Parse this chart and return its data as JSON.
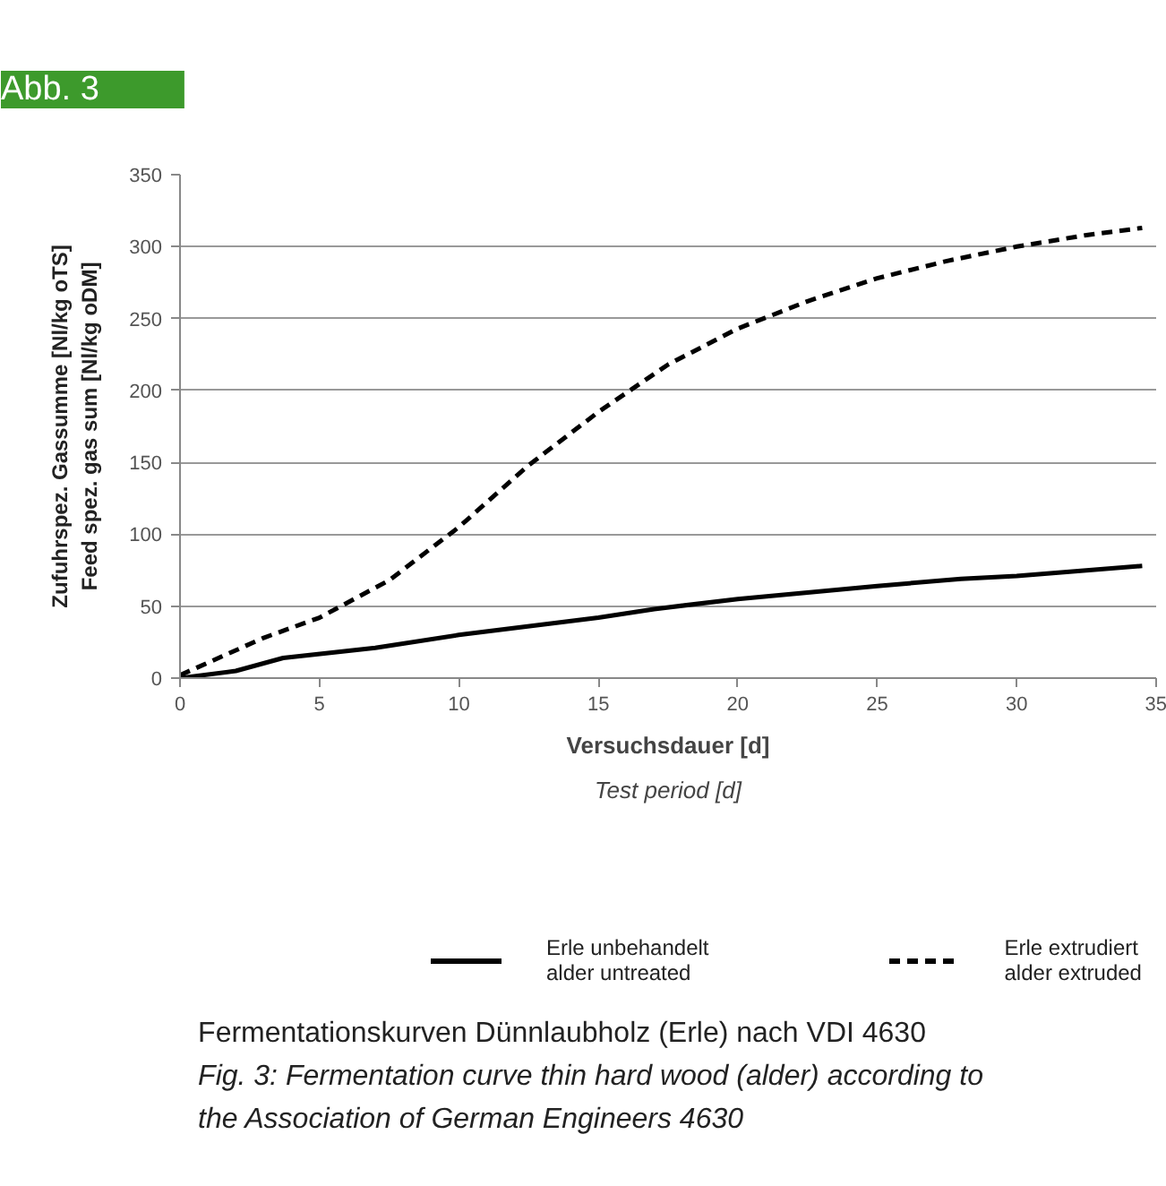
{
  "chart_data": {
    "type": "line",
    "title": "Abb. 3",
    "xlabel": "Versuchsdauer [d]\nTest period [d]",
    "ylabel": "Zufuhrspez. Gassumme [Nl/kg oTS]\nFeed spez. gas sum [Nl/kg oDM]",
    "xlim": [
      0,
      35
    ],
    "xticks": [
      0,
      5,
      10,
      15,
      20,
      25,
      30,
      35
    ],
    "ylim": [
      0,
      350
    ],
    "yticks": [
      0,
      50,
      100,
      150,
      200,
      250,
      300,
      350
    ],
    "grid": "y",
    "legend": "bottom",
    "marker": "none",
    "series": [
      {
        "name": "Erle unbehandelt\nalder untreated",
        "color": "#000000",
        "line_style": "solid",
        "x": [
          0,
          2,
          3.7,
          7,
          10,
          15,
          17,
          20,
          25,
          28,
          30,
          34.5
        ],
        "values": [
          0,
          5,
          14,
          21,
          30,
          42,
          48,
          55,
          64,
          69,
          71,
          78
        ]
      },
      {
        "name": "Erle extrudiert\nalder extruded",
        "color": "#000000",
        "line_style": "dashed",
        "x": [
          0,
          3,
          5,
          7.5,
          10,
          12.5,
          15,
          17.5,
          20,
          22.5,
          25,
          27.5,
          30,
          32.5,
          34.5
        ],
        "values": [
          2,
          28,
          42,
          68,
          105,
          148,
          185,
          218,
          243,
          262,
          278,
          290,
          300,
          308,
          313
        ]
      }
    ],
    "annotations": [
      "Fermentationskurven Dünnlaubholz (Erle) nach VDI 4630",
      "Fig. 3: Fermentation curve thin hard wood (alder) according to the Association of German Engineers 4630"
    ]
  }
}
